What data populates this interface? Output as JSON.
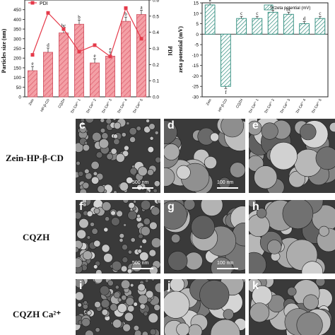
{
  "chart_data": [
    {
      "type": "bar",
      "categories": [
        "Zein",
        "HP-β-CD",
        "CQZH",
        "CQZH Ca2+ 1",
        "CQZH Ca2+ 2",
        "CQZH Ca2+ 3",
        "CQZH Ca2+ 4",
        "CQZH Ca2+ 5"
      ],
      "category_labels": [
        "Zein",
        "HP-β-CD",
        "CQZH",
        "CQZH Ca²⁺ 1",
        "CQZH Ca²⁺ 2",
        "CQZH Ca²⁺ 3",
        "CQZH Ca²⁺ 4",
        "CQZH Ca²⁺ 5"
      ],
      "series": [
        {
          "name": "",
          "values": [
            135,
            230,
            330,
            375,
            175,
            210,
            390,
            425
          ],
          "letters": [
            "e",
            "d",
            "bc",
            "b",
            "e",
            "e",
            "b",
            "a"
          ],
          "color": "#e8707a"
        },
        {
          "name": "PDI",
          "values": [
            0.26,
            0.52,
            0.42,
            0.28,
            0.32,
            0.25,
            0.55,
            0.36
          ],
          "color": "#e53a4a"
        }
      ],
      "legend_entry": "PDI",
      "ylabel": "Particles size (nm)",
      "ylabel2": "PDI",
      "ylim": [
        0,
        500
      ],
      "y2lim": [
        0,
        0.6
      ],
      "yticks": [
        "0",
        "50",
        "100",
        "150",
        "200",
        "250",
        "300",
        "350",
        "400",
        "450"
      ],
      "y2ticks": [
        "0.0",
        "0.1",
        "0.2",
        "0.3",
        "0.4",
        "0.5",
        "0.6"
      ],
      "legend_position": "top-left"
    },
    {
      "type": "bar",
      "categories": [
        "Zein",
        "HP-β-CD",
        "CQZH",
        "CQZH Ca2+ 1",
        "CQZH Ca2+ 2",
        "CQZH Ca2+ 3",
        "CQZH Ca2+ 4",
        "CQZH Ca2+ 5"
      ],
      "category_labels": [
        "Zein",
        "HP-β-CD",
        "CQZH",
        "CQZH Ca²⁺ 1",
        "CQZH Ca²⁺ 2",
        "CQZH Ca²⁺ 3",
        "CQZH Ca²⁺ 4",
        "CQZH Ca²⁺ 5"
      ],
      "values": [
        14,
        -25,
        7.5,
        7.5,
        10.5,
        9.5,
        5,
        7.5
      ],
      "letters": [
        "a",
        "f",
        "c",
        "c",
        "bc",
        "bc",
        "d",
        "c"
      ],
      "legend_entry": "zeta potential (mV)",
      "ylabel": "zeta potential (mV)",
      "ylim": [
        -30,
        15
      ],
      "yticks": [
        "15",
        "10",
        "5",
        "0",
        "-5",
        "-10",
        "-15",
        "-20",
        "-25",
        "-30"
      ],
      "legend_position": "top-right",
      "color": "#2a8a7a"
    }
  ],
  "micrographs": {
    "row_labels": [
      "Zein-HP-β-CD",
      "CQZH",
      "CQZH Ca²⁺"
    ],
    "panels": [
      {
        "letter": "c",
        "scale": "500 nm"
      },
      {
        "letter": "d",
        "scale": "100 nm"
      },
      {
        "letter": "e",
        "scale": ""
      },
      {
        "letter": "f",
        "scale": "500 nm"
      },
      {
        "letter": "g",
        "scale": "100 nm"
      },
      {
        "letter": "h",
        "scale": ""
      },
      {
        "letter": "i",
        "scale": ""
      },
      {
        "letter": "j",
        "scale": ""
      },
      {
        "letter": "k",
        "scale": ""
      }
    ]
  }
}
